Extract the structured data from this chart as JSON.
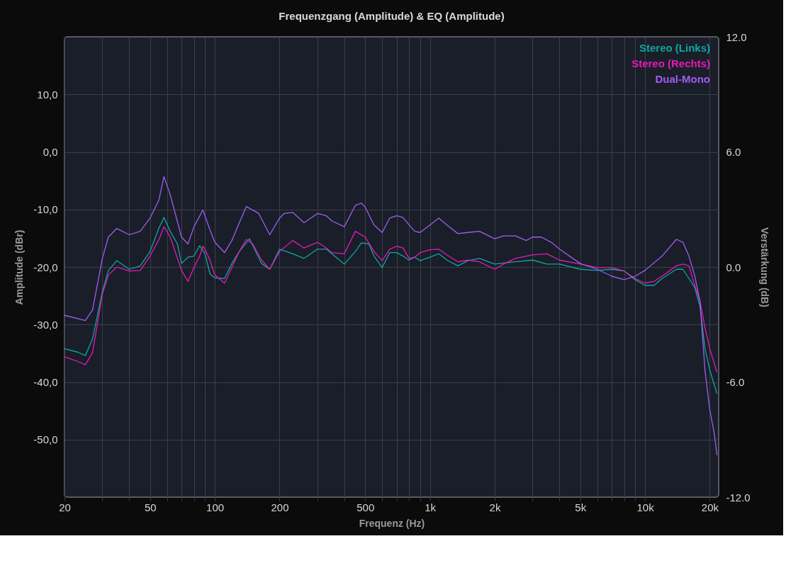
{
  "chart_data": {
    "type": "line",
    "title": "Frequenzgang (Amplitude) & EQ (Amplitude)",
    "xlabel": "Frequenz (Hz)",
    "ylabel": "Amplitude (dBr)",
    "y2label": "Verstärkung (dB)",
    "log": "x",
    "grid": true,
    "legend": "top right",
    "marker": "none",
    "line_style": "solid",
    "xlim": [
      20,
      22000
    ],
    "xticks": [
      20,
      {
        "value": 30,
        "label": null
      },
      {
        "value": 40,
        "label": null
      },
      50,
      {
        "value": 60,
        "label": null
      },
      {
        "value": 70,
        "label": null
      },
      {
        "value": 80,
        "label": null
      },
      {
        "value": 90,
        "label": null
      },
      100,
      200,
      {
        "value": 300,
        "label": null
      },
      {
        "value": 400,
        "label": null
      },
      500,
      {
        "value": 600,
        "label": null
      },
      {
        "value": 700,
        "label": null
      },
      {
        "value": 800,
        "label": null
      },
      {
        "value": 900,
        "label": null
      },
      {
        "value": 1000,
        "label": "1k"
      },
      {
        "value": 2000,
        "label": "2k"
      },
      {
        "value": 3000,
        "label": null
      },
      {
        "value": 4000,
        "label": null
      },
      {
        "value": 5000,
        "label": "5k"
      },
      {
        "value": 6000,
        "label": null
      },
      {
        "value": 7000,
        "label": null
      },
      {
        "value": 8000,
        "label": null
      },
      {
        "value": 9000,
        "label": null
      },
      {
        "value": 10000,
        "label": "10k"
      },
      {
        "value": 20000,
        "label": "20k"
      }
    ],
    "ylim": [
      -60,
      20
    ],
    "yticks": [
      {
        "value": 10,
        "label": "10,0"
      },
      {
        "value": 0,
        "label": "0,0"
      },
      {
        "value": -10,
        "label": "-10,0"
      },
      {
        "value": -20,
        "label": "-20,0"
      },
      {
        "value": -30,
        "label": "-30,0"
      },
      {
        "value": -40,
        "label": "-40,0"
      },
      {
        "value": -50,
        "label": "-50,0"
      }
    ],
    "y2lim": [
      -12,
      12
    ],
    "y2ticks": [
      {
        "value": 12,
        "label": "12.0"
      },
      {
        "value": 6,
        "label": "6.0"
      },
      {
        "value": 0,
        "label": "0.0"
      },
      {
        "value": -6,
        "label": "-6.0"
      },
      {
        "value": -12,
        "label": "-12.0"
      }
    ],
    "series": [
      {
        "name": "Stereo (Links)",
        "color": "#12a59f",
        "x": [
          20,
          23,
          25,
          27,
          30,
          32,
          35,
          40,
          45,
          50,
          55,
          58,
          62,
          67,
          70,
          75,
          80,
          85,
          90,
          95,
          100,
          111,
          120,
          130,
          145,
          165,
          180,
          200,
          230,
          260,
          300,
          330,
          350,
          400,
          450,
          480,
          520,
          550,
          600,
          650,
          700,
          750,
          800,
          850,
          900,
          1000,
          1100,
          1200,
          1350,
          1500,
          1700,
          2000,
          2500,
          3000,
          3500,
          4000,
          5000,
          6000,
          7000,
          8000,
          9000,
          10000,
          11000,
          12000,
          14000,
          15000,
          16000,
          17000,
          18000,
          19000,
          20000,
          21600
        ],
        "values": [
          -34.2,
          -34.8,
          -35.4,
          -32.5,
          -24.3,
          -20.6,
          -18.9,
          -20.4,
          -19.8,
          -17.3,
          -13.2,
          -11.4,
          -13.8,
          -16.0,
          -19.4,
          -18.3,
          -18.1,
          -16.3,
          -17.7,
          -21.2,
          -21.9,
          -22.0,
          -19.4,
          -17.3,
          -15.1,
          -19.4,
          -20.4,
          -16.9,
          -17.7,
          -18.5,
          -16.9,
          -16.9,
          -17.7,
          -19.5,
          -17.3,
          -15.8,
          -16.0,
          -18.1,
          -20.1,
          -17.5,
          -17.5,
          -18.1,
          -18.8,
          -18.3,
          -18.9,
          -18.3,
          -17.7,
          -18.8,
          -19.8,
          -18.9,
          -18.5,
          -19.5,
          -19.1,
          -18.8,
          -19.5,
          -19.5,
          -20.4,
          -20.6,
          -20.4,
          -20.7,
          -22.2,
          -23.2,
          -23.2,
          -22.0,
          -20.4,
          -20.4,
          -22.0,
          -23.5,
          -26.8,
          -34.2,
          -37.9,
          -42.0
        ]
      },
      {
        "name": "Stereo (Rechts)",
        "color": "#e41bb5",
        "x": [
          20,
          23,
          25,
          27,
          30,
          32,
          35,
          40,
          45,
          50,
          55,
          58,
          62,
          67,
          70,
          75,
          80,
          85,
          88,
          90,
          95,
          100,
          111,
          120,
          130,
          140,
          150,
          165,
          180,
          200,
          230,
          260,
          300,
          330,
          350,
          400,
          450,
          500,
          550,
          600,
          650,
          700,
          750,
          800,
          850,
          900,
          1000,
          1100,
          1200,
          1350,
          1500,
          1700,
          2000,
          2200,
          2500,
          3000,
          3500,
          4000,
          5000,
          6000,
          7000,
          8000,
          9000,
          10000,
          11000,
          12000,
          14000,
          15000,
          16000,
          17000,
          18000,
          19000,
          20000,
          21600
        ],
        "values": [
          -35.6,
          -36.4,
          -37.0,
          -34.9,
          -24.7,
          -21.4,
          -20.0,
          -20.7,
          -20.6,
          -18.1,
          -15.2,
          -13.0,
          -14.8,
          -18.5,
          -20.6,
          -22.5,
          -20.1,
          -18.1,
          -16.4,
          -16.9,
          -18.9,
          -21.4,
          -22.8,
          -20.1,
          -17.3,
          -15.2,
          -16.0,
          -18.8,
          -20.4,
          -17.3,
          -15.4,
          -16.7,
          -15.7,
          -16.7,
          -17.5,
          -17.7,
          -13.8,
          -14.8,
          -17.3,
          -18.9,
          -16.9,
          -16.4,
          -16.7,
          -18.5,
          -18.3,
          -17.5,
          -17.0,
          -16.9,
          -17.9,
          -19.1,
          -18.8,
          -19.1,
          -20.4,
          -19.5,
          -18.5,
          -17.9,
          -17.7,
          -18.8,
          -19.5,
          -20.1,
          -20.1,
          -20.7,
          -22.0,
          -22.8,
          -22.5,
          -21.6,
          -19.8,
          -19.5,
          -19.8,
          -23.1,
          -25.9,
          -30.5,
          -34.2,
          -38.3
        ]
      },
      {
        "name": "Dual-Mono",
        "color": "#a25cf2",
        "x": [
          20,
          25,
          27,
          30,
          32,
          35,
          40,
          45,
          50,
          55,
          58,
          62,
          70,
          75,
          80,
          88,
          95,
          100,
          111,
          120,
          130,
          140,
          150,
          160,
          180,
          200,
          210,
          230,
          260,
          300,
          330,
          350,
          400,
          450,
          480,
          500,
          550,
          600,
          650,
          700,
          750,
          800,
          850,
          900,
          1000,
          1100,
          1200,
          1350,
          1500,
          1700,
          2000,
          2200,
          2500,
          2800,
          3000,
          3300,
          3700,
          4000,
          5000,
          6000,
          7000,
          8000,
          9000,
          10000,
          12000,
          14000,
          15000,
          16000,
          17000,
          18000,
          19000,
          20000,
          21000,
          21600
        ],
        "values": [
          -28.4,
          -29.3,
          -27.5,
          -18.5,
          -14.8,
          -13.3,
          -14.4,
          -13.8,
          -11.5,
          -8.3,
          -4.3,
          -7.4,
          -14.8,
          -16.0,
          -13.0,
          -10.1,
          -13.6,
          -15.7,
          -17.5,
          -15.4,
          -12.3,
          -9.5,
          -10.1,
          -10.7,
          -14.4,
          -11.5,
          -10.7,
          -10.5,
          -12.3,
          -10.7,
          -11.1,
          -12.0,
          -13.0,
          -9.3,
          -8.9,
          -9.6,
          -12.7,
          -14.0,
          -11.5,
          -11.1,
          -11.4,
          -12.7,
          -13.8,
          -14.0,
          -12.7,
          -11.5,
          -12.7,
          -14.2,
          -14.0,
          -13.8,
          -15.1,
          -14.6,
          -14.6,
          -15.4,
          -14.8,
          -14.8,
          -15.8,
          -16.9,
          -19.4,
          -20.4,
          -21.6,
          -22.2,
          -21.6,
          -20.6,
          -18.1,
          -15.2,
          -15.7,
          -18.1,
          -21.4,
          -25.9,
          -37.9,
          -44.8,
          -49.0,
          -52.7
        ]
      }
    ]
  }
}
